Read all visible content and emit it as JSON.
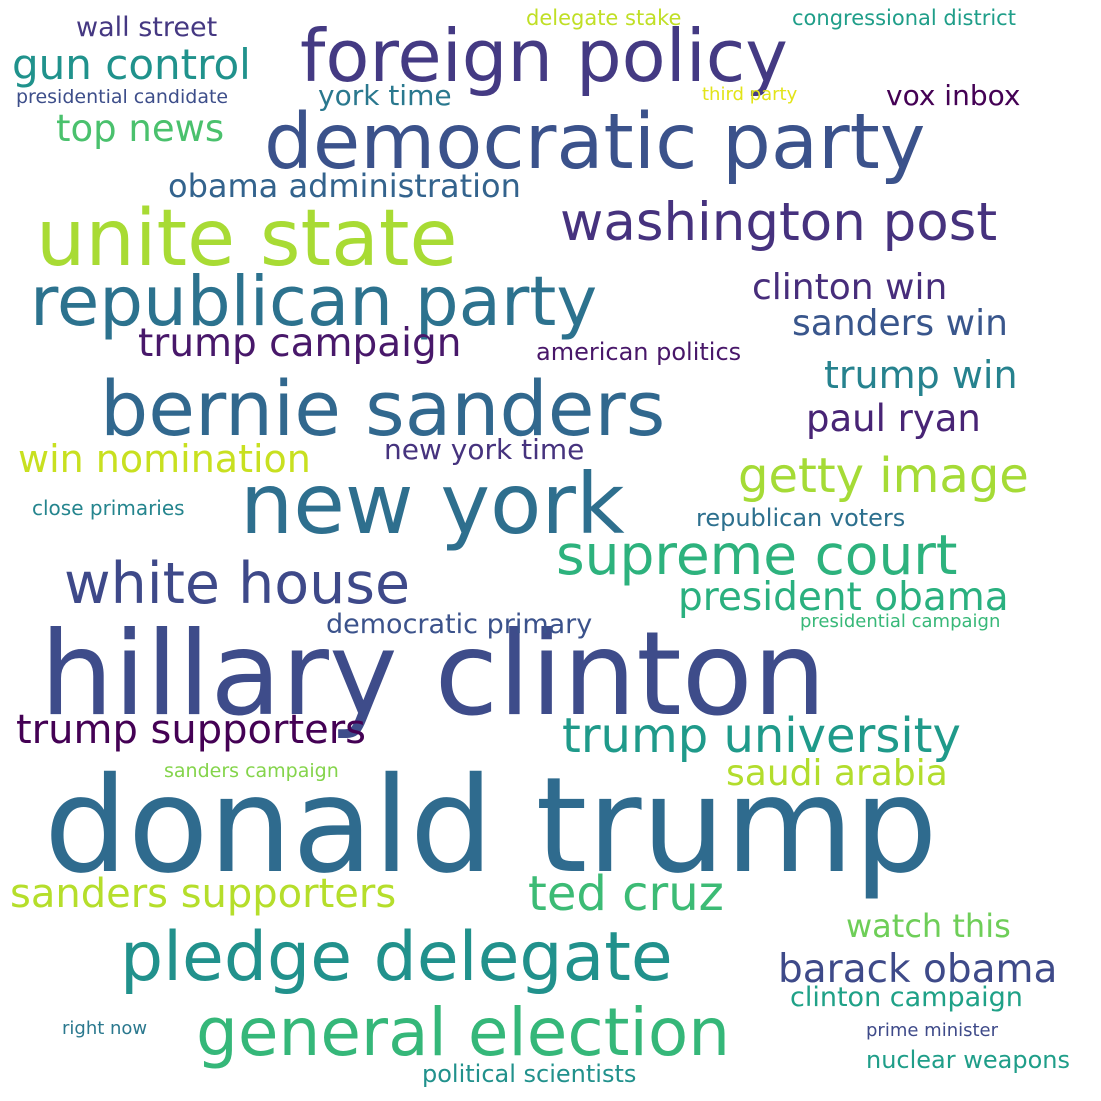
{
  "words": [
    {
      "text": "hillary clinton",
      "weight": 100,
      "color": "#3e4c8a"
    },
    {
      "text": "donald trump",
      "weight": 98,
      "color": "#2f6b8e"
    },
    {
      "text": "new york",
      "weight": 70,
      "color": "#2e6f8e"
    },
    {
      "text": "bernie sanders",
      "weight": 66,
      "color": "#31688e"
    },
    {
      "text": "democratic party",
      "weight": 62,
      "color": "#3b528b"
    },
    {
      "text": "unite state",
      "weight": 64,
      "color": "#a8db34"
    },
    {
      "text": "republican party",
      "weight": 60,
      "color": "#2c728e"
    },
    {
      "text": "foreign policy",
      "weight": 58,
      "color": "#443a83"
    },
    {
      "text": "pledge delegate",
      "weight": 58,
      "color": "#21918c"
    },
    {
      "text": "general election",
      "weight": 56,
      "color": "#35b779"
    },
    {
      "text": "white house",
      "weight": 52,
      "color": "#3e4989"
    },
    {
      "text": "supreme court",
      "weight": 50,
      "color": "#2db27d"
    },
    {
      "text": "washington post",
      "weight": 50,
      "color": "#46327e"
    },
    {
      "text": "getty image",
      "weight": 44,
      "color": "#a5db36"
    },
    {
      "text": "trump university",
      "weight": 44,
      "color": "#1f9a8a"
    },
    {
      "text": "barack obama",
      "weight": 42,
      "color": "#3e4a89"
    },
    {
      "text": "ted cruz",
      "weight": 42,
      "color": "#3cbb75"
    },
    {
      "text": "sanders supporters",
      "weight": 40,
      "color": "#b5de2b"
    },
    {
      "text": "trump supporters",
      "weight": 40,
      "color": "#440154"
    },
    {
      "text": "gun control",
      "weight": 40,
      "color": "#20928c"
    },
    {
      "text": "president obama",
      "weight": 38,
      "color": "#2ab07f"
    },
    {
      "text": "trump campaign",
      "weight": 37,
      "color": "#48186a"
    },
    {
      "text": "win nomination",
      "weight": 36,
      "color": "#c8e020"
    },
    {
      "text": "trump win",
      "weight": 34,
      "color": "#26828e"
    },
    {
      "text": "sanders win",
      "weight": 33,
      "color": "#39568c"
    },
    {
      "text": "clinton win",
      "weight": 32,
      "color": "#472d7b"
    },
    {
      "text": "saudi arabia",
      "weight": 32,
      "color": "#b2dd2d"
    },
    {
      "text": "paul ryan",
      "weight": 32,
      "color": "#482475"
    },
    {
      "text": "top news",
      "weight": 32,
      "color": "#4ac16d"
    },
    {
      "text": "obama administration",
      "weight": 30,
      "color": "#33638d"
    },
    {
      "text": "watch this",
      "weight": 30,
      "color": "#6ece58"
    },
    {
      "text": "clinton campaign",
      "weight": 26,
      "color": "#1fa187"
    },
    {
      "text": "democratic primary",
      "weight": 26,
      "color": "#3b528b"
    },
    {
      "text": "new york time",
      "weight": 26,
      "color": "#46337e"
    },
    {
      "text": "york time",
      "weight": 26,
      "color": "#2a788e"
    },
    {
      "text": "vox inbox",
      "weight": 26,
      "color": "#440154"
    },
    {
      "text": "wall street",
      "weight": 25,
      "color": "#453882"
    },
    {
      "text": "political scientists",
      "weight": 24,
      "color": "#21918c"
    },
    {
      "text": "republican voters",
      "weight": 23,
      "color": "#2d708e"
    },
    {
      "text": "nuclear weapons",
      "weight": 22,
      "color": "#1f9e89"
    },
    {
      "text": "american politics",
      "weight": 22,
      "color": "#481769"
    },
    {
      "text": "congressional district",
      "weight": 21,
      "color": "#1f9e89"
    },
    {
      "text": "delegate stake",
      "weight": 21,
      "color": "#c0df25"
    },
    {
      "text": "close primaries",
      "weight": 19,
      "color": "#25858e"
    },
    {
      "text": "presidential candidate",
      "weight": 19,
      "color": "#3d4e8a"
    },
    {
      "text": "sanders campaign",
      "weight": 19,
      "color": "#84d44b"
    },
    {
      "text": "presidential campaign",
      "weight": 18,
      "color": "#37b878"
    },
    {
      "text": "prime minister",
      "weight": 18,
      "color": "#3e4a89"
    },
    {
      "text": "right now",
      "weight": 18,
      "color": "#2a788e"
    },
    {
      "text": "third party",
      "weight": 17,
      "color": "#e2e418"
    }
  ]
}
